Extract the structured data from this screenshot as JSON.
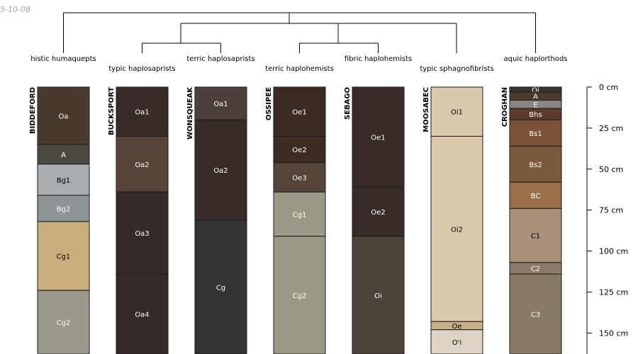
{
  "date_stamp": "5-10-08",
  "depth_axis": {
    "unit": "cm",
    "ticks": [
      {
        "depth": 0,
        "label": "0 cm"
      },
      {
        "depth": 25,
        "label": "25 cm"
      },
      {
        "depth": 50,
        "label": "50 cm"
      },
      {
        "depth": 75,
        "label": "75 cm"
      },
      {
        "depth": 100,
        "label": "100 cm"
      },
      {
        "depth": 125,
        "label": "125 cm"
      },
      {
        "depth": 150,
        "label": "150 cm"
      }
    ]
  },
  "profiles": [
    {
      "id": "bideford",
      "name": "BIDDEFORD",
      "taxon": "histic humaquepts",
      "horizons": [
        {
          "name": "Oa",
          "top": 0,
          "bottom": 35,
          "color": "#4a3a2e",
          "text": "#ffffff"
        },
        {
          "name": "A",
          "top": 35,
          "bottom": 47,
          "color": "#4c4a40",
          "text": "#ffffff"
        },
        {
          "name": "Bg1",
          "top": 47,
          "bottom": 66,
          "color": "#a8adaf",
          "text": "#000000"
        },
        {
          "name": "Bg2",
          "top": 66,
          "bottom": 82,
          "color": "#8e9597",
          "text": "#ffffff"
        },
        {
          "name": "Cg1",
          "top": 82,
          "bottom": 124,
          "color": "#c8ae7d",
          "text": "#000000"
        },
        {
          "name": "Cg2",
          "top": 124,
          "bottom": 165,
          "color": "#9a998b",
          "text": "#ffffff"
        }
      ]
    },
    {
      "id": "bucksport",
      "name": "BUCKSPORT",
      "taxon": "typic haplosaprists",
      "horizons": [
        {
          "name": "Oa1",
          "top": 0,
          "bottom": 30,
          "color": "#372c27",
          "text": "#ffffff"
        },
        {
          "name": "Oa2",
          "top": 30,
          "bottom": 64,
          "color": "#584438",
          "text": "#ffffff"
        },
        {
          "name": "Oa3",
          "top": 64,
          "bottom": 114,
          "color": "#342a27",
          "text": "#ffffff"
        },
        {
          "name": "Oa4",
          "top": 114,
          "bottom": 165,
          "color": "#342a27",
          "text": "#ffffff"
        }
      ]
    },
    {
      "id": "wonsqueak",
      "name": "WONSQUEAK",
      "taxon": "terric haplosaprists",
      "horizons": [
        {
          "name": "Oa1",
          "top": 0,
          "bottom": 20,
          "color": "#4c413a",
          "text": "#ffffff"
        },
        {
          "name": "Oa2",
          "top": 20,
          "bottom": 81,
          "color": "#372c27",
          "text": "#ffffff"
        },
        {
          "name": "Cg",
          "top": 81,
          "bottom": 165,
          "color": "#333333",
          "text": "#ffffff"
        }
      ]
    },
    {
      "id": "ossipee",
      "name": "OSSIPEE",
      "taxon": "terric haplohemists",
      "horizons": [
        {
          "name": "Oe1",
          "top": 0,
          "bottom": 30,
          "color": "#3d2b24",
          "text": "#ffffff"
        },
        {
          "name": "Oe2",
          "top": 30,
          "bottom": 46,
          "color": "#3d2b24",
          "text": "#ffffff"
        },
        {
          "name": "Oe3",
          "top": 46,
          "bottom": 64,
          "color": "#54443a",
          "text": "#ffffff"
        },
        {
          "name": "Cg1",
          "top": 64,
          "bottom": 91,
          "color": "#9b9886",
          "text": "#ffffff"
        },
        {
          "name": "Cg2",
          "top": 91,
          "bottom": 165,
          "color": "#9b9886",
          "text": "#ffffff"
        }
      ]
    },
    {
      "id": "sebago",
      "name": "SEBAGO",
      "taxon": "fibric haplohemists",
      "horizons": [
        {
          "name": "Oe1",
          "top": 0,
          "bottom": 61,
          "color": "#372c27",
          "text": "#ffffff"
        },
        {
          "name": "Oe2",
          "top": 61,
          "bottom": 91,
          "color": "#372c27",
          "text": "#ffffff"
        },
        {
          "name": "Oi",
          "top": 91,
          "bottom": 165,
          "color": "#4c433a",
          "text": "#ffffff"
        }
      ]
    },
    {
      "id": "moosabec",
      "name": "MOOSABEC",
      "taxon": "typic sphagnofibrists",
      "horizons": [
        {
          "name": "Oi1",
          "top": 0,
          "bottom": 30,
          "color": "#dcc8ac",
          "text": "#000000"
        },
        {
          "name": "Oi2",
          "top": 30,
          "bottom": 143,
          "color": "#dcc8ac",
          "text": "#000000"
        },
        {
          "name": "Oe",
          "top": 143,
          "bottom": 148,
          "color": "#c6b085",
          "text": "#000000"
        },
        {
          "name": "O'i",
          "top": 148,
          "bottom": 165,
          "color": "#ded4c6",
          "text": "#000000"
        }
      ]
    },
    {
      "id": "croghan",
      "name": "CROGHAN",
      "taxon": "aquic haplorthods",
      "horizons": [
        {
          "name": "Oi",
          "top": 0,
          "bottom": 3,
          "color": "#3d342e",
          "text": "#ffffff"
        },
        {
          "name": "A",
          "top": 3,
          "bottom": 8,
          "color": "#4c3a30",
          "text": "#ffffff"
        },
        {
          "name": "E",
          "top": 8,
          "bottom": 13,
          "color": "#8a8580",
          "text": "#ffffff"
        },
        {
          "name": "Bhs",
          "top": 13,
          "bottom": 20,
          "color": "#5e3a2a",
          "text": "#ffffff"
        },
        {
          "name": "Bs1",
          "top": 20,
          "bottom": 36,
          "color": "#7a5238",
          "text": "#ffffff"
        },
        {
          "name": "Bs2",
          "top": 36,
          "bottom": 58,
          "color": "#7a5a3a",
          "text": "#ffffff"
        },
        {
          "name": "BC",
          "top": 58,
          "bottom": 74,
          "color": "#9a7048",
          "text": "#ffffff"
        },
        {
          "name": "C1",
          "top": 74,
          "bottom": 107,
          "color": "#a8917a",
          "text": "#000000"
        },
        {
          "name": "C2",
          "top": 107,
          "bottom": 114,
          "color": "#8e7a68",
          "text": "#ffffff"
        },
        {
          "name": "C3",
          "top": 114,
          "bottom": 165,
          "color": "#867a64",
          "text": "#ffffff"
        }
      ]
    }
  ]
}
